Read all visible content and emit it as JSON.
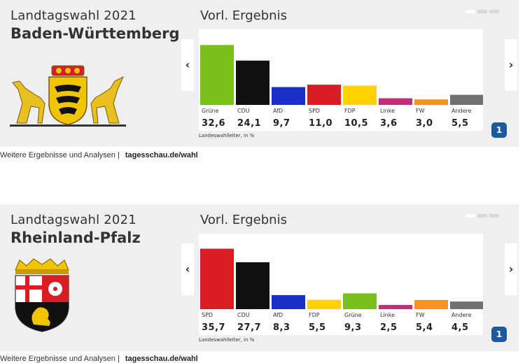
{
  "widgets": [
    {
      "title_line1": "Landtagswahl 2021",
      "title_line2": "Baden-Württemberg",
      "panel_title": "Vorl. Ergebnis",
      "source": "Landeswahlleiter, in %",
      "logo_glyph": "1",
      "arrow_left": "‹",
      "arrow_right": "›",
      "footer_text": "Weitere Ergebnisse und Analysen |",
      "footer_link": "tagesschau.de/wahl",
      "chart_data": {
        "type": "bar",
        "categories": [
          "Grüne",
          "CDU",
          "AfD",
          "SPD",
          "FDP",
          "Linke",
          "FW",
          "Andere"
        ],
        "values": [
          32.6,
          24.1,
          9.7,
          11.0,
          10.5,
          3.6,
          3.0,
          5.5
        ],
        "value_labels": [
          "32,6",
          "24,1",
          "9,7",
          "11,0",
          "10,5",
          "3,6",
          "3,0",
          "5,5"
        ],
        "colors": [
          "#7ac01c",
          "#111111",
          "#1a2fc4",
          "#d81e24",
          "#ffd200",
          "#be3075",
          "#f7931e",
          "#707070"
        ],
        "title": "Vorl. Ergebnis",
        "ylim": [
          0,
          35
        ]
      }
    },
    {
      "title_line1": "Landtagswahl 2021",
      "title_line2": "Rheinland-Pfalz",
      "panel_title": "Vorl. Ergebnis",
      "source": "Landeswahlleiter, in %",
      "logo_glyph": "1",
      "arrow_left": "‹",
      "arrow_right": "›",
      "footer_text": "Weitere Ergebnisse und Analysen |",
      "footer_link": "tagesschau.de/wahl",
      "chart_data": {
        "type": "bar",
        "categories": [
          "SPD",
          "CDU",
          "AfD",
          "FDP",
          "Grüne",
          "Linke",
          "FW",
          "Andere"
        ],
        "values": [
          35.7,
          27.7,
          8.3,
          5.5,
          9.3,
          2.5,
          5.4,
          4.5
        ],
        "value_labels": [
          "35,7",
          "27,7",
          "8,3",
          "5,5",
          "9,3",
          "2,5",
          "5,4",
          "4,5"
        ],
        "colors": [
          "#d81e24",
          "#111111",
          "#1a2fc4",
          "#ffd200",
          "#7ac01c",
          "#be3075",
          "#f7931e",
          "#707070"
        ],
        "title": "Vorl. Ergebnis",
        "ylim": [
          0,
          38
        ]
      }
    }
  ]
}
